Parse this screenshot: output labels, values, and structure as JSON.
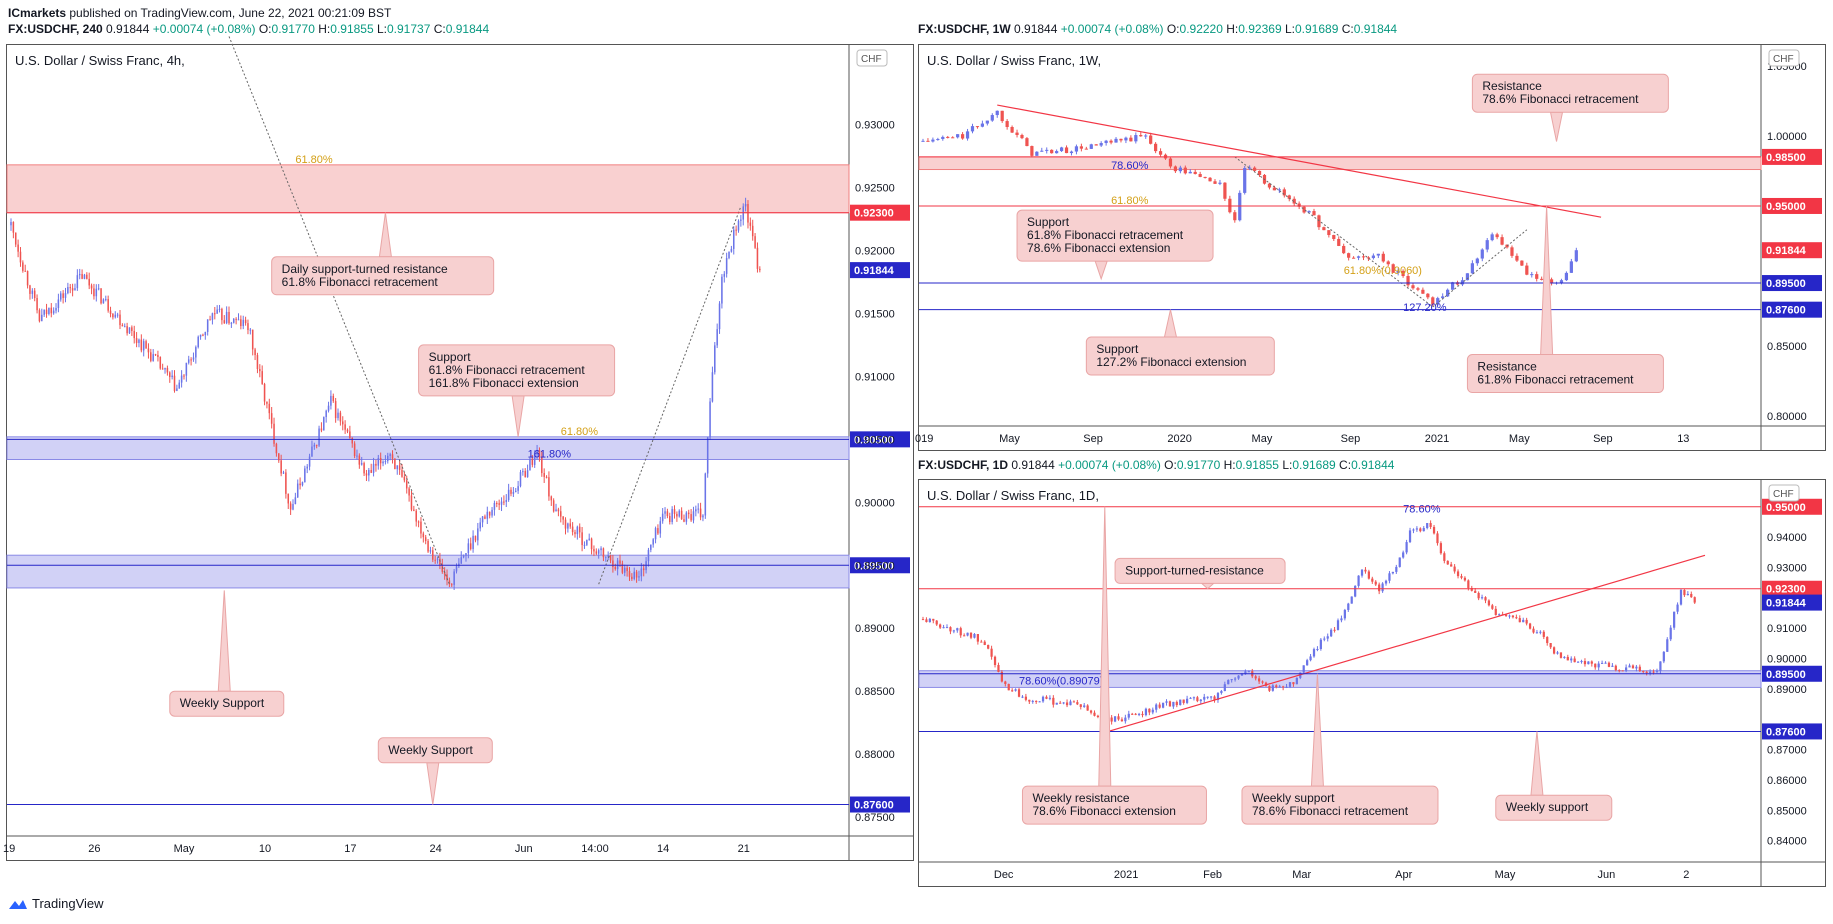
{
  "header": {
    "publisher": "ICmarkets",
    "text": "published on TradingView.com, June 22, 2021 00:21:09 BST"
  },
  "footer": {
    "brand": "TradingView"
  },
  "colors": {
    "up": "#6a74e8",
    "down": "#ef5350",
    "fibo_orange": "#d4a017",
    "zone_red": "#f8c8c8",
    "zone_blue": "#c9c9f5",
    "line_red": "#f23645",
    "line_blue": "#2626c8",
    "callout_bg": "#f7d0d0",
    "callout_border": "#e9a5a5"
  },
  "panels": {
    "p4h": {
      "ohlc": {
        "symbol": "FX:USDCHF, 240",
        "last": "0.91844",
        "change": "+0.00074 (+0.08%)",
        "o": "0.91770",
        "h": "0.91855",
        "l": "0.91737",
        "c": "0.91844"
      },
      "title": "U.S. Dollar / Swiss Franc, 4h,",
      "currency": "CHF"
    },
    "p1w": {
      "ohlc": {
        "symbol": "FX:USDCHF, 1W",
        "last": "0.91844",
        "change": "+0.00074 (+0.08%)",
        "o": "0.92220",
        "h": "0.92369",
        "l": "0.91689",
        "c": "0.91844"
      },
      "title": "U.S. Dollar / Swiss Franc, 1W,",
      "currency": "CHF"
    },
    "p1d": {
      "ohlc": {
        "symbol": "FX:USDCHF, 1D",
        "last": "0.91844",
        "change": "+0.00074 (+0.08%)",
        "o": "0.91770",
        "h": "0.91855",
        "l": "0.91689",
        "c": "0.91844"
      },
      "title": "U.S. Dollar / Swiss Franc, 1D,",
      "currency": "CHF"
    }
  },
  "chart_data": [
    {
      "id": "p4h",
      "type": "candlestick",
      "ylim": [
        0.8735,
        0.936
      ],
      "y_ticks": [
        "0.93000",
        "0.92500",
        "0.92000",
        "0.91500",
        "0.91000",
        "0.90500",
        "0.90000",
        "0.89500",
        "0.89000",
        "0.88500",
        "0.88000",
        "0.87500"
      ],
      "y_tick_values": [
        0.93,
        0.925,
        0.92,
        0.915,
        0.91,
        0.905,
        0.9,
        0.895,
        0.89,
        0.885,
        0.88,
        0.875
      ],
      "x_ticks": [
        {
          "label": "19",
          "i": 0
        },
        {
          "label": "26",
          "i": 36
        },
        {
          "label": "May",
          "i": 72
        },
        {
          "label": "10",
          "i": 108
        },
        {
          "label": "17",
          "i": 144
        },
        {
          "label": "24",
          "i": 180
        },
        {
          "label": "Jun",
          "i": 216
        },
        {
          "label": "14:00",
          "i": 244
        },
        {
          "label": "14",
          "i": 276
        },
        {
          "label": "21",
          "i": 310
        }
      ],
      "n_bars": 330,
      "anchors": [
        [
          0,
          0.922
        ],
        [
          12,
          0.9145
        ],
        [
          30,
          0.918
        ],
        [
          60,
          0.9115
        ],
        [
          70,
          0.909
        ],
        [
          85,
          0.915
        ],
        [
          100,
          0.914
        ],
        [
          118,
          0.8995
        ],
        [
          135,
          0.908
        ],
        [
          150,
          0.902
        ],
        [
          160,
          0.904
        ],
        [
          175,
          0.897
        ],
        [
          185,
          0.8935
        ],
        [
          200,
          0.899
        ],
        [
          212,
          0.901
        ],
        [
          222,
          0.904
        ],
        [
          230,
          0.899
        ],
        [
          248,
          0.896
        ],
        [
          265,
          0.894
        ],
        [
          275,
          0.899
        ],
        [
          292,
          0.899
        ],
        [
          295,
          0.908
        ],
        [
          300,
          0.918
        ],
        [
          306,
          0.922
        ],
        [
          310,
          0.9235
        ],
        [
          316,
          0.918
        ]
      ],
      "last_value": 0.91844,
      "zones": [
        {
          "from": 0.923,
          "to": 0.9268,
          "color": "zone_red"
        },
        {
          "from": 0.9034,
          "to": 0.9052,
          "color": "zone_blue"
        },
        {
          "from": 0.8932,
          "to": 0.8958,
          "color": "zone_blue"
        }
      ],
      "hlines": [
        {
          "y": 0.923,
          "color": "line_red",
          "label": "0.92300"
        },
        {
          "y": 0.905,
          "color": "line_blue",
          "label": "0.90500"
        },
        {
          "y": 0.895,
          "color": "line_blue",
          "label": "0.89500"
        },
        {
          "y": 0.876,
          "color": "line_blue",
          "label": "0.87600"
        }
      ],
      "fib_labels": [
        {
          "text": "61.80%",
          "x_i": 120,
          "y": 0.9268,
          "color": "fibo_orange"
        },
        {
          "text": "61.80%",
          "x_i": 232,
          "y": 0.9052,
          "color": "fibo_orange"
        },
        {
          "text": "161.80%",
          "x_i": 218,
          "y": 0.9034,
          "color": "line_blue"
        }
      ],
      "callouts": [
        {
          "lines": [
            "Daily support-turned resistance",
            "61.8% Fibonacci retracement"
          ],
          "box_i": 110,
          "box_y": 0.9195,
          "w": 222,
          "ptr_dir": "up",
          "ptr_y": 0.923,
          "ptr_i": 158
        },
        {
          "lines": [
            "Support",
            "61.8% Fibonacci retracement",
            "161.8% Fibonacci extension"
          ],
          "box_i": 172,
          "box_y": 0.9125,
          "w": 196,
          "ptr_dir": "down",
          "ptr_y": 0.9052,
          "ptr_i": 214
        },
        {
          "lines": [
            "Weekly Support"
          ],
          "box_i": 67,
          "box_y": 0.885,
          "w": 114,
          "ptr_dir": "up",
          "ptr_y": 0.893,
          "ptr_i": 90
        },
        {
          "lines": [
            "Weekly Support"
          ],
          "box_i": 155,
          "box_y": 0.8813,
          "w": 114,
          "ptr_dir": "down",
          "ptr_y": 0.876,
          "ptr_i": 178
        }
      ],
      "trend_dotted": [
        [
          [
            92,
            0.937
          ],
          [
            185,
            0.8935
          ]
        ],
        [
          [
            248,
            0.8935
          ],
          [
            308,
            0.9235
          ]
        ]
      ]
    },
    {
      "id": "p1w",
      "type": "candlestick",
      "ylim": [
        0.793,
        1.062
      ],
      "y_ticks": [
        "1.05000",
        "1.00000",
        "0.85000",
        "0.80000"
      ],
      "y_tick_values": [
        1.05,
        1.0,
        0.85,
        0.8
      ],
      "x_ticks": [
        {
          "label": "019",
          "i": 0
        },
        {
          "label": "May",
          "i": 17
        },
        {
          "label": "Sep",
          "i": 34
        },
        {
          "label": "2020",
          "i": 51
        },
        {
          "label": "May",
          "i": 68
        },
        {
          "label": "Sep",
          "i": 86
        },
        {
          "label": "2021",
          "i": 103
        },
        {
          "label": "May",
          "i": 120
        },
        {
          "label": "Sep",
          "i": 137
        },
        {
          "label": "13",
          "i": 154
        }
      ],
      "n_bars": 158,
      "anchors": [
        [
          0,
          0.996
        ],
        [
          8,
          1.0
        ],
        [
          15,
          1.017
        ],
        [
          22,
          0.988
        ],
        [
          30,
          0.99
        ],
        [
          38,
          0.995
        ],
        [
          45,
          1.0
        ],
        [
          50,
          0.978
        ],
        [
          57,
          0.97
        ],
        [
          60,
          0.965
        ],
        [
          63,
          0.938
        ],
        [
          65,
          0.978
        ],
        [
          70,
          0.965
        ],
        [
          78,
          0.945
        ],
        [
          86,
          0.913
        ],
        [
          92,
          0.914
        ],
        [
          98,
          0.895
        ],
        [
          103,
          0.882
        ],
        [
          110,
          0.902
        ],
        [
          115,
          0.932
        ],
        [
          122,
          0.901
        ],
        [
          127,
          0.894
        ],
        [
          130,
          0.9
        ],
        [
          132,
          0.9184
        ]
      ],
      "last_value": 0.91844,
      "zones": [
        {
          "from": 0.976,
          "to": 0.985,
          "color": "zone_red"
        }
      ],
      "hlines": [
        {
          "y": 0.985,
          "color": "line_red",
          "label": "0.98500"
        },
        {
          "y": 0.95,
          "color": "line_red",
          "label": "0.95000"
        },
        {
          "y": 0.895,
          "color": "line_blue",
          "label": "0.89500"
        },
        {
          "y": 0.876,
          "color": "line_blue",
          "label": "0.87600"
        }
      ],
      "price_labels": [
        {
          "y": 0.91844,
          "color": "line_red",
          "label": "0.91844"
        }
      ],
      "fib_labels": [
        {
          "text": "78.60%",
          "x_i": 38,
          "y": 0.9748,
          "color": "line_blue"
        },
        {
          "text": "61.80%",
          "x_i": 38,
          "y": 0.95,
          "color": "fibo_orange"
        },
        {
          "text": "61.80%(0.9060)",
          "x_i": 85,
          "y": 0.9,
          "color": "fibo_orange"
        },
        {
          "text": "127.20%",
          "x_i": 97,
          "y": 0.8735,
          "color": "line_blue"
        }
      ],
      "callouts": [
        {
          "lines": [
            "Resistance",
            "78.6% Fibonacci retracement"
          ],
          "box_i": 111,
          "box_y": 1.044,
          "w": 196,
          "ptr_dir": "down",
          "ptr_y": 0.996,
          "ptr_i": 128
        },
        {
          "lines": [
            "Support",
            "61.8% Fibonacci retracement",
            "78.6% Fibonacci extension"
          ],
          "box_i": 19,
          "box_y": 0.947,
          "w": 196,
          "ptr_dir": "down",
          "ptr_y": 0.898,
          "ptr_i": 36
        },
        {
          "lines": [
            "Support",
            "127.2% Fibonacci extension"
          ],
          "box_i": 33,
          "box_y": 0.8565,
          "w": 188,
          "ptr_dir": "up",
          "ptr_y": 0.876,
          "ptr_i": 50
        },
        {
          "lines": [
            "Resistance",
            "61.8% Fibonacci retracement"
          ],
          "box_i": 110,
          "box_y": 0.844,
          "w": 196,
          "ptr_dir": "up",
          "ptr_y": 0.95,
          "ptr_i": 126
        }
      ],
      "trend_red": [
        [
          15,
          1.022
        ],
        [
          137,
          0.942
        ]
      ],
      "trend_dotted": [
        [
          [
            63,
            0.985
          ],
          [
            103,
            0.878
          ]
        ],
        [
          [
            103,
            0.878
          ],
          [
            122,
            0.933
          ]
        ]
      ]
    },
    {
      "id": "p1d",
      "type": "candlestick",
      "ylim": [
        0.833,
        0.9575
      ],
      "y_ticks": [
        "0.94000",
        "0.93000",
        "0.91000",
        "0.90000",
        "0.89000",
        "0.87000",
        "0.86000",
        "0.85000",
        "0.84000"
      ],
      "y_tick_values": [
        0.94,
        0.93,
        0.91,
        0.9,
        0.89,
        0.87,
        0.86,
        0.85,
        0.84
      ],
      "x_ticks": [
        {
          "label": "Dec",
          "i": 23
        },
        {
          "label": "2021",
          "i": 58
        },
        {
          "label": "Feb",
          "i": 84
        },
        {
          "label": "Mar",
          "i": 110
        },
        {
          "label": "Apr",
          "i": 140
        },
        {
          "label": "May",
          "i": 169
        },
        {
          "label": "Jun",
          "i": 199
        },
        {
          "label": "2",
          "i": 224
        }
      ],
      "n_bars": 228,
      "anchors": [
        [
          0,
          0.913
        ],
        [
          15,
          0.907
        ],
        [
          20,
          0.901
        ],
        [
          23,
          0.892
        ],
        [
          30,
          0.887
        ],
        [
          45,
          0.885
        ],
        [
          52,
          0.88
        ],
        [
          58,
          0.88
        ],
        [
          70,
          0.885
        ],
        [
          85,
          0.887
        ],
        [
          88,
          0.892
        ],
        [
          95,
          0.896
        ],
        [
          100,
          0.89
        ],
        [
          108,
          0.892
        ],
        [
          112,
          0.9
        ],
        [
          122,
          0.913
        ],
        [
          128,
          0.93
        ],
        [
          133,
          0.923
        ],
        [
          138,
          0.93
        ],
        [
          142,
          0.942
        ],
        [
          148,
          0.944
        ],
        [
          152,
          0.932
        ],
        [
          160,
          0.923
        ],
        [
          168,
          0.914
        ],
        [
          175,
          0.912
        ],
        [
          180,
          0.908
        ],
        [
          185,
          0.901
        ],
        [
          195,
          0.898
        ],
        [
          205,
          0.897
        ],
        [
          214,
          0.896
        ],
        [
          218,
          0.91
        ],
        [
          221,
          0.923
        ],
        [
          225,
          0.9184
        ]
      ],
      "last_value": 0.91844,
      "zones": [
        {
          "from": 0.8905,
          "to": 0.896,
          "color": "zone_blue"
        }
      ],
      "hlines": [
        {
          "y": 0.95,
          "color": "line_red",
          "label": "0.95000"
        },
        {
          "y": 0.923,
          "color": "line_red",
          "label": "0.92300"
        },
        {
          "y": 0.895,
          "color": "line_blue",
          "label": "0.89500"
        },
        {
          "y": 0.876,
          "color": "line_blue",
          "label": "0.87600"
        }
      ],
      "fib_labels": [
        {
          "text": "78.60%",
          "x_i": 140,
          "y": 0.9475,
          "color": "line_blue"
        },
        {
          "text": "78.60%(0.89079)",
          "x_i": 28,
          "y": 0.8908,
          "color": "line_blue"
        }
      ],
      "callouts": [
        {
          "lines": [
            "Support-turned-resistance"
          ],
          "box_i": 56,
          "box_y": 0.933,
          "w": 170,
          "ptr_dir": "down",
          "ptr_y": 0.923,
          "ptr_i": 83
        },
        {
          "lines": [
            "Weekly resistance",
            "78.6% Fibonacci extension"
          ],
          "box_i": 29,
          "box_y": 0.858,
          "w": 184,
          "ptr_dir": "up",
          "ptr_y": 0.95,
          "ptr_i": 53
        },
        {
          "lines": [
            "Weekly support",
            "78.6% Fibonacci retracement"
          ],
          "box_i": 93,
          "box_y": 0.858,
          "w": 196,
          "ptr_dir": "up",
          "ptr_y": 0.895,
          "ptr_i": 115
        },
        {
          "lines": [
            "Weekly support"
          ],
          "box_i": 167,
          "box_y": 0.855,
          "w": 116,
          "ptr_dir": "up",
          "ptr_y": 0.876,
          "ptr_i": 179
        }
      ],
      "trend_red": [
        [
          54,
          0.876
        ],
        [
          228,
          0.934
        ]
      ]
    }
  ]
}
